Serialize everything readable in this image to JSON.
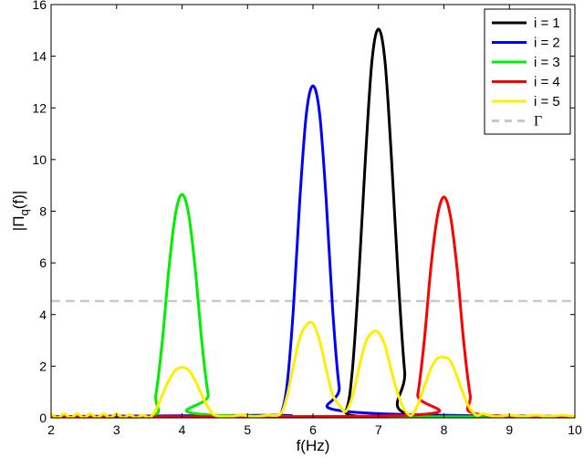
{
  "chart_data": {
    "type": "line",
    "title": "",
    "xlabel": "f(Hz)",
    "ylabel": "|Π_q(f)|",
    "ylabel_main": "|Π",
    "ylabel_sub": "q",
    "ylabel_tail": "(f)|",
    "xlim": [
      2,
      10
    ],
    "ylim": [
      0,
      16
    ],
    "xticks": [
      2,
      3,
      4,
      5,
      6,
      7,
      8,
      9,
      10
    ],
    "yticks": [
      0,
      2,
      4,
      6,
      8,
      10,
      12,
      14,
      16
    ],
    "grid": false,
    "legend_position": "upper right",
    "threshold": {
      "name": "Γ",
      "value": 4.52,
      "color": "#c8c8c8",
      "style": "dashed"
    },
    "series": [
      {
        "name": "i = 1",
        "color": "#000000",
        "points": [
          [
            2,
            0.05
          ],
          [
            6.3,
            0.05
          ],
          [
            6.5,
            0.25
          ],
          [
            6.6,
            1.8
          ],
          [
            6.7,
            5.5
          ],
          [
            6.8,
            10.0
          ],
          [
            6.9,
            13.8
          ],
          [
            7.0,
            15.05
          ],
          [
            7.1,
            13.8
          ],
          [
            7.2,
            10.0
          ],
          [
            7.3,
            5.5
          ],
          [
            7.4,
            1.8
          ],
          [
            7.5,
            0.1
          ],
          [
            10,
            0.05
          ]
        ]
      },
      {
        "name": "i = 2",
        "color": "#0000ff",
        "points": [
          [
            2,
            0.05
          ],
          [
            5.4,
            0.1
          ],
          [
            5.5,
            0.1
          ],
          [
            5.6,
            1.2
          ],
          [
            5.7,
            4.2
          ],
          [
            5.8,
            8.5
          ],
          [
            5.9,
            11.8
          ],
          [
            6.0,
            12.85
          ],
          [
            6.1,
            11.8
          ],
          [
            6.2,
            8.5
          ],
          [
            6.3,
            4.2
          ],
          [
            6.4,
            1.2
          ],
          [
            6.5,
            0.25
          ],
          [
            10,
            0.05
          ]
        ]
      },
      {
        "name": "i = 3",
        "color": "#00ee00",
        "points": [
          [
            2,
            0.05
          ],
          [
            3.5,
            0.05
          ],
          [
            3.6,
            0.9
          ],
          [
            3.7,
            3.0
          ],
          [
            3.8,
            5.8
          ],
          [
            3.9,
            7.9
          ],
          [
            4.0,
            8.65
          ],
          [
            4.1,
            7.9
          ],
          [
            4.2,
            5.8
          ],
          [
            4.3,
            3.0
          ],
          [
            4.4,
            0.9
          ],
          [
            4.5,
            0.1
          ],
          [
            10,
            0.05
          ]
        ]
      },
      {
        "name": "i = 4",
        "color": "#ff0000",
        "points": [
          [
            2,
            0.05
          ],
          [
            7.5,
            0.1
          ],
          [
            7.6,
            0.9
          ],
          [
            7.7,
            3.0
          ],
          [
            7.8,
            5.8
          ],
          [
            7.9,
            7.8
          ],
          [
            8.0,
            8.55
          ],
          [
            8.1,
            7.8
          ],
          [
            8.2,
            5.8
          ],
          [
            8.3,
            3.0
          ],
          [
            8.4,
            0.9
          ],
          [
            8.5,
            0.15
          ],
          [
            10,
            0.05
          ]
        ]
      },
      {
        "name": "i = 5",
        "color": "#ffee00",
        "points": [
          [
            2,
            0.15
          ],
          [
            2.1,
            0.0
          ],
          [
            2.2,
            0.15
          ],
          [
            2.3,
            0.0
          ],
          [
            2.4,
            0.15
          ],
          [
            2.5,
            0.0
          ],
          [
            2.6,
            0.15
          ],
          [
            2.7,
            0.0
          ],
          [
            2.8,
            0.15
          ],
          [
            2.9,
            0.0
          ],
          [
            3.0,
            0.15
          ],
          [
            3.1,
            0.0
          ],
          [
            3.2,
            0.12
          ],
          [
            3.3,
            0.0
          ],
          [
            3.4,
            0.1
          ],
          [
            3.5,
            0.0
          ],
          [
            3.6,
            0.3
          ],
          [
            3.7,
            0.9
          ],
          [
            3.8,
            1.45
          ],
          [
            3.9,
            1.85
          ],
          [
            4.0,
            1.95
          ],
          [
            4.1,
            1.85
          ],
          [
            4.2,
            1.45
          ],
          [
            4.3,
            0.9
          ],
          [
            4.4,
            0.4
          ],
          [
            4.5,
            0.1
          ],
          [
            4.7,
            0.05
          ],
          [
            4.9,
            0.1
          ],
          [
            5.1,
            0.05
          ],
          [
            5.3,
            0.1
          ],
          [
            5.5,
            0.15
          ],
          [
            5.6,
            0.8
          ],
          [
            5.7,
            2.0
          ],
          [
            5.8,
            3.1
          ],
          [
            5.9,
            3.6
          ],
          [
            6.0,
            3.65
          ],
          [
            6.1,
            3.0
          ],
          [
            6.2,
            1.9
          ],
          [
            6.3,
            0.9
          ],
          [
            6.4,
            0.5
          ],
          [
            6.5,
            0.25
          ],
          [
            6.6,
            0.8
          ],
          [
            6.7,
            1.9
          ],
          [
            6.8,
            2.9
          ],
          [
            6.9,
            3.3
          ],
          [
            7.0,
            3.3
          ],
          [
            7.1,
            2.8
          ],
          [
            7.2,
            1.8
          ],
          [
            7.3,
            0.9
          ],
          [
            7.4,
            0.3
          ],
          [
            7.5,
            0.1
          ],
          [
            7.6,
            0.5
          ],
          [
            7.7,
            1.2
          ],
          [
            7.8,
            1.9
          ],
          [
            7.9,
            2.3
          ],
          [
            8.0,
            2.35
          ],
          [
            8.1,
            2.2
          ],
          [
            8.2,
            1.6
          ],
          [
            8.3,
            0.9
          ],
          [
            8.4,
            0.35
          ],
          [
            8.5,
            0.1
          ],
          [
            8.6,
            0.15
          ],
          [
            8.8,
            0.05
          ],
          [
            9.0,
            0.1
          ],
          [
            9.2,
            0.05
          ],
          [
            9.4,
            0.1
          ],
          [
            9.6,
            0.05
          ],
          [
            9.8,
            0.1
          ],
          [
            10,
            0.05
          ]
        ]
      }
    ]
  },
  "legend": {
    "entries": [
      {
        "label": "i = 1",
        "color": "#000000",
        "style": "solid"
      },
      {
        "label": "i = 2",
        "color": "#0000ff",
        "style": "solid"
      },
      {
        "label": "i = 3",
        "color": "#00ee00",
        "style": "solid"
      },
      {
        "label": "i = 4",
        "color": "#ff0000",
        "style": "solid"
      },
      {
        "label": "i = 5",
        "color": "#ffee00",
        "style": "solid"
      },
      {
        "label": "Γ",
        "color": "#c8c8c8",
        "style": "dashed"
      }
    ]
  }
}
